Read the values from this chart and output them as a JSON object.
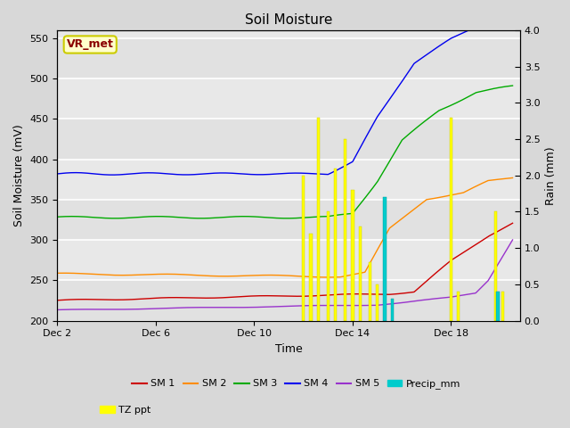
{
  "title": "Soil Moisture",
  "xlabel": "Time",
  "ylabel_left": "Soil Moisture (mV)",
  "ylabel_right": "Rain (mm)",
  "ylim_left": [
    200,
    560
  ],
  "ylim_right": [
    0.0,
    4.0
  ],
  "yticks_left": [
    200,
    250,
    300,
    350,
    400,
    450,
    500,
    550
  ],
  "yticks_right": [
    0.0,
    0.5,
    1.0,
    1.5,
    2.0,
    2.5,
    3.0,
    3.5,
    4.0
  ],
  "xtick_labels": [
    "Dec 2",
    "Dec 6",
    "Dec 10",
    "Dec 14",
    "Dec 18"
  ],
  "xtick_positions": [
    0,
    4,
    8,
    12,
    16
  ],
  "xlim": [
    0,
    18.8
  ],
  "annotation_label": "VR_met",
  "annotation_color": "#8B0000",
  "annotation_bg": "#FFFFCC",
  "annotation_edge": "#CCCC00",
  "fig_bg_color": "#D8D8D8",
  "plot_bg_color": "#E8E8E8",
  "grid_color": "#FFFFFF",
  "sm1_color": "#CC0000",
  "sm2_color": "#FF8C00",
  "sm3_color": "#00AA00",
  "sm4_color": "#0000EE",
  "sm5_color": "#9933CC",
  "precip_color": "#00CCCC",
  "tz_color": "#FFFF00",
  "tz_edge_color": "#CCCC00",
  "legend_ncol": 6,
  "legend_ncol2": 1,
  "title_fontsize": 11,
  "axis_fontsize": 9,
  "tick_fontsize": 8,
  "annot_fontsize": 9
}
